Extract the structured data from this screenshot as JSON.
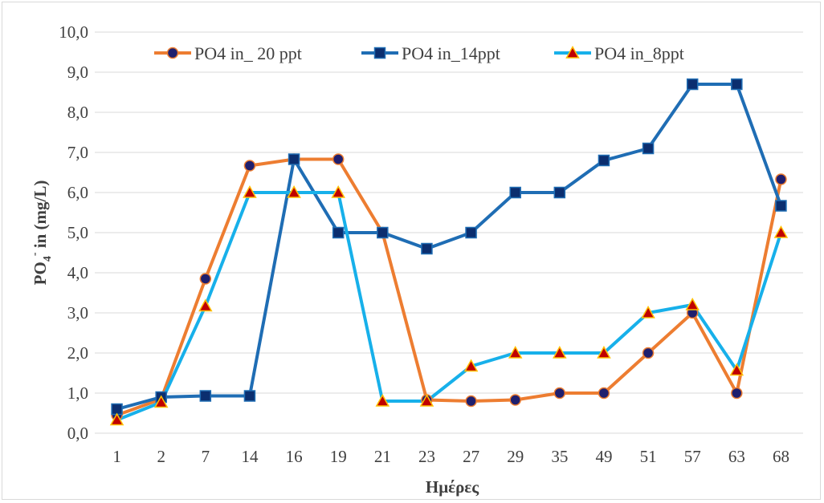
{
  "chart_data": {
    "type": "line",
    "categories": [
      "1",
      "2",
      "7",
      "14",
      "16",
      "19",
      "21",
      "23",
      "27",
      "29",
      "35",
      "49",
      "51",
      "57",
      "63",
      "68"
    ],
    "series": [
      {
        "name": "PO4 in_ 20 ppt",
        "color": "#ED7D31",
        "marker": "circle",
        "marker_fill": "#1F1F6E",
        "values": [
          0.45,
          0.85,
          3.85,
          6.67,
          6.83,
          6.83,
          5.0,
          0.83,
          0.8,
          0.83,
          1.0,
          1.0,
          2.0,
          3.0,
          1.0,
          6.33
        ]
      },
      {
        "name": "PO4 in_14ppt",
        "color": "#1F6DB4",
        "marker": "square",
        "marker_fill": "#0B2E6F",
        "values": [
          0.6,
          0.9,
          0.93,
          0.93,
          6.83,
          5.0,
          5.0,
          4.6,
          5.0,
          6.0,
          6.0,
          6.8,
          7.1,
          8.7,
          8.7,
          5.67
        ]
      },
      {
        "name": "PO4 in_8ppt",
        "color": "#17B0EA",
        "marker": "triangle",
        "marker_fill": "#C00000",
        "marker_stroke": "#FFC000",
        "values": [
          0.33,
          0.77,
          3.17,
          6.0,
          6.0,
          6.0,
          0.8,
          0.8,
          1.67,
          2.0,
          2.0,
          2.0,
          3.0,
          3.2,
          1.57,
          5.0
        ]
      }
    ],
    "y_ticks": [
      "0,0",
      "1,0",
      "2,0",
      "3,0",
      "4,0",
      "5,0",
      "6,0",
      "7,0",
      "8,0",
      "9,0",
      "10,0"
    ],
    "ylim": [
      0,
      10
    ],
    "xlabel": "Ημέρες",
    "ylabel_main": "PO",
    "ylabel_sub": "4",
    "ylabel_sup": "-",
    "ylabel_rest": " in (mg/L)",
    "grid": true,
    "legend_position": "top"
  }
}
